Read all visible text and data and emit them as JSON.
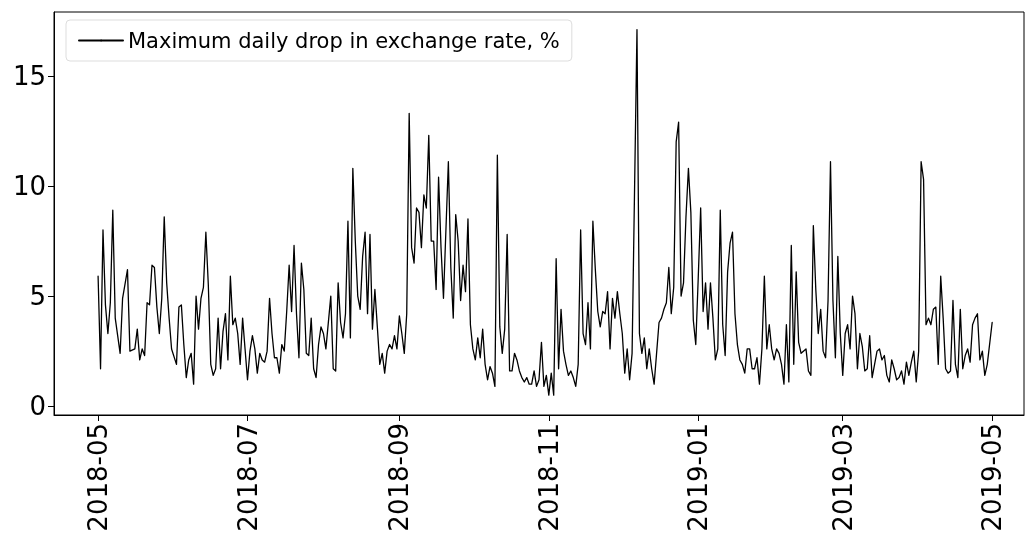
{
  "chart_data": {
    "type": "line",
    "legend": "top left",
    "grid": false,
    "marker": "none",
    "line_style": "solid",
    "xlim": [
      "2018-04-13",
      "2019-05-14"
    ],
    "ylim": [
      -0.4,
      17.9
    ],
    "xticks": [
      {
        "value": "2018-05-01",
        "label": "2018-05"
      },
      {
        "value": "2018-07-01",
        "label": "2018-07"
      },
      {
        "value": "2018-09-01",
        "label": "2018-09"
      },
      {
        "value": "2018-11-01",
        "label": "2018-11"
      },
      {
        "value": "2019-01-01",
        "label": "2019-01"
      },
      {
        "value": "2019-03-01",
        "label": "2019-03"
      },
      {
        "value": "2019-05-01",
        "label": "2019-05"
      }
    ],
    "yticks": [
      0,
      5,
      10,
      15
    ],
    "series": [
      {
        "name": "Maximum daily drop in exchange rate, %",
        "color": "#000000",
        "x": [
          "2018-05-01",
          "2018-05-02",
          "2018-05-03",
          "2018-05-04",
          "2018-05-05",
          "2018-05-06",
          "2018-05-07",
          "2018-05-08",
          "2018-05-10",
          "2018-05-11",
          "2018-05-13",
          "2018-05-14",
          "2018-05-16",
          "2018-05-17",
          "2018-05-18",
          "2018-05-19",
          "2018-05-20",
          "2018-05-21",
          "2018-05-22",
          "2018-05-23",
          "2018-05-24",
          "2018-05-25",
          "2018-05-26",
          "2018-05-27",
          "2018-05-28",
          "2018-05-29",
          "2018-05-30",
          "2018-05-31",
          "2018-06-02",
          "2018-06-03",
          "2018-06-04",
          "2018-06-05",
          "2018-06-06",
          "2018-06-07",
          "2018-06-08",
          "2018-06-09",
          "2018-06-10",
          "2018-06-11",
          "2018-06-12",
          "2018-06-13",
          "2018-06-14",
          "2018-06-15",
          "2018-06-16",
          "2018-06-17",
          "2018-06-18",
          "2018-06-19",
          "2018-06-20",
          "2018-06-21",
          "2018-06-22",
          "2018-06-23",
          "2018-06-24",
          "2018-06-25",
          "2018-06-26",
          "2018-06-27",
          "2018-06-28",
          "2018-06-29",
          "2018-06-30",
          "2018-07-01",
          "2018-07-02",
          "2018-07-03",
          "2018-07-04",
          "2018-07-05",
          "2018-07-06",
          "2018-07-07",
          "2018-07-08",
          "2018-07-09",
          "2018-07-10",
          "2018-07-11",
          "2018-07-12",
          "2018-07-13",
          "2018-07-14",
          "2018-07-15",
          "2018-07-16",
          "2018-07-17",
          "2018-07-18",
          "2018-07-19",
          "2018-07-20",
          "2018-07-21",
          "2018-07-22",
          "2018-07-23",
          "2018-07-24",
          "2018-07-25",
          "2018-07-26",
          "2018-07-27",
          "2018-07-28",
          "2018-07-29",
          "2018-07-30",
          "2018-07-31",
          "2018-08-01",
          "2018-08-02",
          "2018-08-04",
          "2018-08-05",
          "2018-08-06",
          "2018-08-07",
          "2018-08-08",
          "2018-08-09",
          "2018-08-10",
          "2018-08-11",
          "2018-08-12",
          "2018-08-13",
          "2018-08-14",
          "2018-08-15",
          "2018-08-16",
          "2018-08-17",
          "2018-08-18",
          "2018-08-19",
          "2018-08-20",
          "2018-08-21",
          "2018-08-22",
          "2018-08-23",
          "2018-08-24",
          "2018-08-25",
          "2018-08-26",
          "2018-08-27",
          "2018-08-28",
          "2018-08-29",
          "2018-08-30",
          "2018-08-31",
          "2018-09-01",
          "2018-09-02",
          "2018-09-03",
          "2018-09-04",
          "2018-09-05",
          "2018-09-06",
          "2018-09-07",
          "2018-09-08",
          "2018-09-09",
          "2018-09-10",
          "2018-09-11",
          "2018-09-12",
          "2018-09-13",
          "2018-09-14",
          "2018-09-15",
          "2018-09-16",
          "2018-09-17",
          "2018-09-18",
          "2018-09-19",
          "2018-09-21",
          "2018-09-22",
          "2018-09-23",
          "2018-09-24",
          "2018-09-25",
          "2018-09-26",
          "2018-09-27",
          "2018-09-28",
          "2018-09-29",
          "2018-09-30",
          "2018-10-01",
          "2018-10-02",
          "2018-10-03",
          "2018-10-04",
          "2018-10-05",
          "2018-10-06",
          "2018-10-07",
          "2018-10-08",
          "2018-10-09",
          "2018-10-10",
          "2018-10-11",
          "2018-10-12",
          "2018-10-13",
          "2018-10-14",
          "2018-10-15",
          "2018-10-16",
          "2018-10-17",
          "2018-10-18",
          "2018-10-19",
          "2018-10-20",
          "2018-10-21",
          "2018-10-22",
          "2018-10-23",
          "2018-10-24",
          "2018-10-25",
          "2018-10-26",
          "2018-10-27",
          "2018-10-28",
          "2018-10-29",
          "2018-10-30",
          "2018-10-31",
          "2018-11-01",
          "2018-11-02",
          "2018-11-03",
          "2018-11-04",
          "2018-11-05",
          "2018-11-06",
          "2018-11-07",
          "2018-11-08",
          "2018-11-09",
          "2018-11-10",
          "2018-11-11",
          "2018-11-12",
          "2018-11-13",
          "2018-11-14",
          "2018-11-15",
          "2018-11-16",
          "2018-11-17",
          "2018-11-18",
          "2018-11-19",
          "2018-11-20",
          "2018-11-21",
          "2018-11-22",
          "2018-11-23",
          "2018-11-24",
          "2018-11-25",
          "2018-11-26",
          "2018-11-27",
          "2018-11-28",
          "2018-11-29",
          "2018-11-30",
          "2018-12-01",
          "2018-12-02",
          "2018-12-03",
          "2018-12-04",
          "2018-12-05",
          "2018-12-07",
          "2018-12-08",
          "2018-12-09",
          "2018-12-10",
          "2018-12-11",
          "2018-12-12",
          "2018-12-13",
          "2018-12-14",
          "2018-12-15",
          "2018-12-16",
          "2018-12-17",
          "2018-12-18",
          "2018-12-19",
          "2018-12-20",
          "2018-12-21",
          "2018-12-22",
          "2018-12-23",
          "2018-12-24",
          "2018-12-25",
          "2018-12-26",
          "2018-12-27",
          "2018-12-28",
          "2018-12-29",
          "2018-12-30",
          "2018-12-31",
          "2019-01-01",
          "2019-01-02",
          "2019-01-03",
          "2019-01-04",
          "2019-01-05",
          "2019-01-06",
          "2019-01-07",
          "2019-01-08",
          "2019-01-09",
          "2019-01-10",
          "2019-01-11",
          "2019-01-12",
          "2019-01-13",
          "2019-01-14",
          "2019-01-15",
          "2019-01-16",
          "2019-01-17",
          "2019-01-18",
          "2019-01-19",
          "2019-01-20",
          "2019-01-21",
          "2019-01-22",
          "2019-01-23",
          "2019-01-24",
          "2019-01-25",
          "2019-01-26",
          "2019-01-27",
          "2019-01-28",
          "2019-01-29",
          "2019-01-30",
          "2019-01-31",
          "2019-02-01",
          "2019-02-02",
          "2019-02-03",
          "2019-02-04",
          "2019-02-05",
          "2019-02-06",
          "2019-02-07",
          "2019-02-08",
          "2019-02-09",
          "2019-02-10",
          "2019-02-11",
          "2019-02-12",
          "2019-02-14",
          "2019-02-15",
          "2019-02-16",
          "2019-02-17",
          "2019-02-18",
          "2019-02-19",
          "2019-02-20",
          "2019-02-21",
          "2019-02-22",
          "2019-02-23",
          "2019-02-24",
          "2019-02-25",
          "2019-02-26",
          "2019-02-27",
          "2019-02-28",
          "2019-03-01",
          "2019-03-02",
          "2019-03-03",
          "2019-03-04",
          "2019-03-05",
          "2019-03-06",
          "2019-03-07",
          "2019-03-08",
          "2019-03-09",
          "2019-03-10",
          "2019-03-11",
          "2019-03-12",
          "2019-03-13",
          "2019-03-14",
          "2019-03-15",
          "2019-03-16",
          "2019-03-17",
          "2019-03-18",
          "2019-03-19",
          "2019-03-20",
          "2019-03-21",
          "2019-03-22",
          "2019-03-23",
          "2019-03-24",
          "2019-03-25",
          "2019-03-26",
          "2019-03-27",
          "2019-03-28",
          "2019-03-29",
          "2019-03-30",
          "2019-03-31",
          "2019-04-01",
          "2019-04-02",
          "2019-04-03",
          "2019-04-04",
          "2019-04-05",
          "2019-04-06",
          "2019-04-07",
          "2019-04-08",
          "2019-04-09",
          "2019-04-10",
          "2019-04-11",
          "2019-04-12",
          "2019-04-13",
          "2019-04-14",
          "2019-04-15",
          "2019-04-16",
          "2019-04-17",
          "2019-04-18",
          "2019-04-19",
          "2019-04-20",
          "2019-04-21",
          "2019-04-22",
          "2019-04-23",
          "2019-04-24",
          "2019-04-25",
          "2019-04-26",
          "2019-04-27",
          "2019-04-28",
          "2019-04-29",
          "2019-05-01"
        ],
        "values": [
          5.9,
          1.7,
          8.0,
          4.6,
          3.3,
          4.7,
          8.9,
          4.0,
          2.4,
          4.9,
          6.2,
          2.5,
          2.6,
          3.5,
          2.1,
          2.6,
          2.3,
          4.7,
          4.6,
          6.4,
          6.3,
          4.5,
          3.3,
          4.9,
          8.6,
          5.6,
          4.0,
          2.6,
          1.9,
          4.5,
          4.6,
          2.8,
          1.3,
          2.1,
          2.4,
          1.0,
          5.0,
          3.5,
          4.9,
          5.4,
          7.9,
          5.5,
          1.9,
          1.4,
          1.7,
          4.0,
          1.7,
          3.4,
          4.2,
          2.1,
          5.9,
          3.7,
          4.0,
          3.3,
          1.9,
          4.0,
          2.6,
          1.2,
          2.5,
          3.2,
          2.6,
          1.5,
          2.4,
          2.1,
          2.0,
          2.5,
          4.9,
          3.3,
          2.2,
          2.2,
          1.5,
          2.8,
          2.5,
          4.3,
          6.4,
          4.3,
          7.3,
          4.2,
          2.2,
          6.5,
          5.3,
          2.4,
          2.3,
          4.0,
          1.7,
          1.3,
          2.8,
          3.6,
          3.3,
          2.6,
          5.0,
          1.7,
          1.6,
          5.6,
          3.8,
          3.1,
          4.2,
          8.4,
          3.1,
          10.8,
          7.5,
          5.0,
          4.4,
          6.8,
          7.9,
          4.2,
          7.8,
          3.5,
          5.3,
          3.6,
          1.9,
          2.4,
          1.5,
          2.5,
          2.8,
          2.6,
          3.2,
          2.6,
          4.1,
          3.3,
          2.4,
          4.2,
          13.3,
          7.2,
          6.5,
          9.0,
          8.8,
          7.2,
          9.6,
          9.0,
          12.3,
          7.5,
          7.5,
          5.3,
          10.4,
          7.2,
          4.9,
          11.1,
          6.3,
          4.0,
          8.7,
          7.5,
          4.8,
          6.4,
          5.2,
          8.5,
          3.7,
          2.6,
          2.1,
          3.1,
          2.2,
          3.5,
          1.9,
          1.2,
          1.8,
          1.5,
          0.9,
          11.4,
          3.6,
          2.4,
          3.5,
          7.8,
          1.6,
          1.6,
          2.4,
          2.1,
          1.6,
          1.3,
          1.1,
          1.3,
          1.0,
          1.0,
          1.6,
          0.9,
          1.2,
          2.9,
          0.9,
          1.4,
          0.5,
          1.5,
          0.5,
          6.7,
          1.7,
          4.4,
          2.5,
          1.9,
          1.4,
          1.6,
          1.3,
          0.9,
          1.9,
          8.0,
          3.3,
          2.8,
          4.7,
          2.6,
          8.4,
          6.2,
          4.3,
          3.6,
          4.3,
          4.2,
          5.2,
          2.6,
          4.9,
          4.0,
          5.2,
          4.2,
          3.3,
          1.5,
          2.6,
          1.2,
          2.4,
          17.1,
          3.3,
          2.4,
          3.1,
          1.7,
          2.6,
          1.7,
          1.0,
          2.4,
          3.8,
          4.0,
          4.4,
          4.7,
          6.3,
          4.2,
          5.4,
          12.0,
          12.9,
          5.0,
          5.6,
          8.6,
          10.8,
          8.8,
          3.9,
          2.8,
          5.8,
          9.0,
          4.3,
          5.6,
          3.5,
          5.6,
          4.0,
          2.1,
          2.6,
          8.9,
          3.7,
          2.3,
          6.1,
          7.4,
          7.9,
          4.2,
          2.8,
          2.1,
          1.9,
          1.5,
          2.6,
          2.6,
          1.7,
          1.7,
          2.2,
          1.0,
          2.6,
          5.9,
          2.6,
          3.7,
          2.6,
          2.1,
          2.6,
          2.4,
          1.9,
          1.0,
          3.7,
          1.1,
          7.3,
          1.9,
          6.1,
          2.9,
          2.4,
          2.6,
          1.6,
          1.4,
          8.2,
          5.3,
          3.3,
          4.4,
          2.5,
          2.2,
          4.8,
          11.1,
          4.8,
          2.2,
          6.8,
          3.3,
          1.4,
          3.3,
          3.7,
          2.6,
          5.0,
          4.2,
          1.7,
          3.3,
          2.7,
          1.6,
          1.7,
          3.2,
          1.3,
          1.9,
          2.5,
          2.6,
          2.1,
          2.3,
          1.4,
          1.1,
          2.1,
          1.7,
          1.2,
          1.3,
          1.6,
          1.0,
          2.0,
          1.4,
          2.0,
          2.5,
          1.1,
          2.5,
          11.1,
          10.3,
          3.7,
          4.0,
          3.7,
          4.4,
          4.5,
          1.9,
          5.9,
          4.0,
          1.7,
          1.5,
          1.6,
          4.8,
          1.9,
          1.3,
          4.4,
          1.7,
          2.3,
          2.6,
          2.0,
          3.7,
          4.0,
          4.2,
          2.1,
          2.5,
          1.4,
          1.9,
          3.8
        ]
      }
    ]
  }
}
